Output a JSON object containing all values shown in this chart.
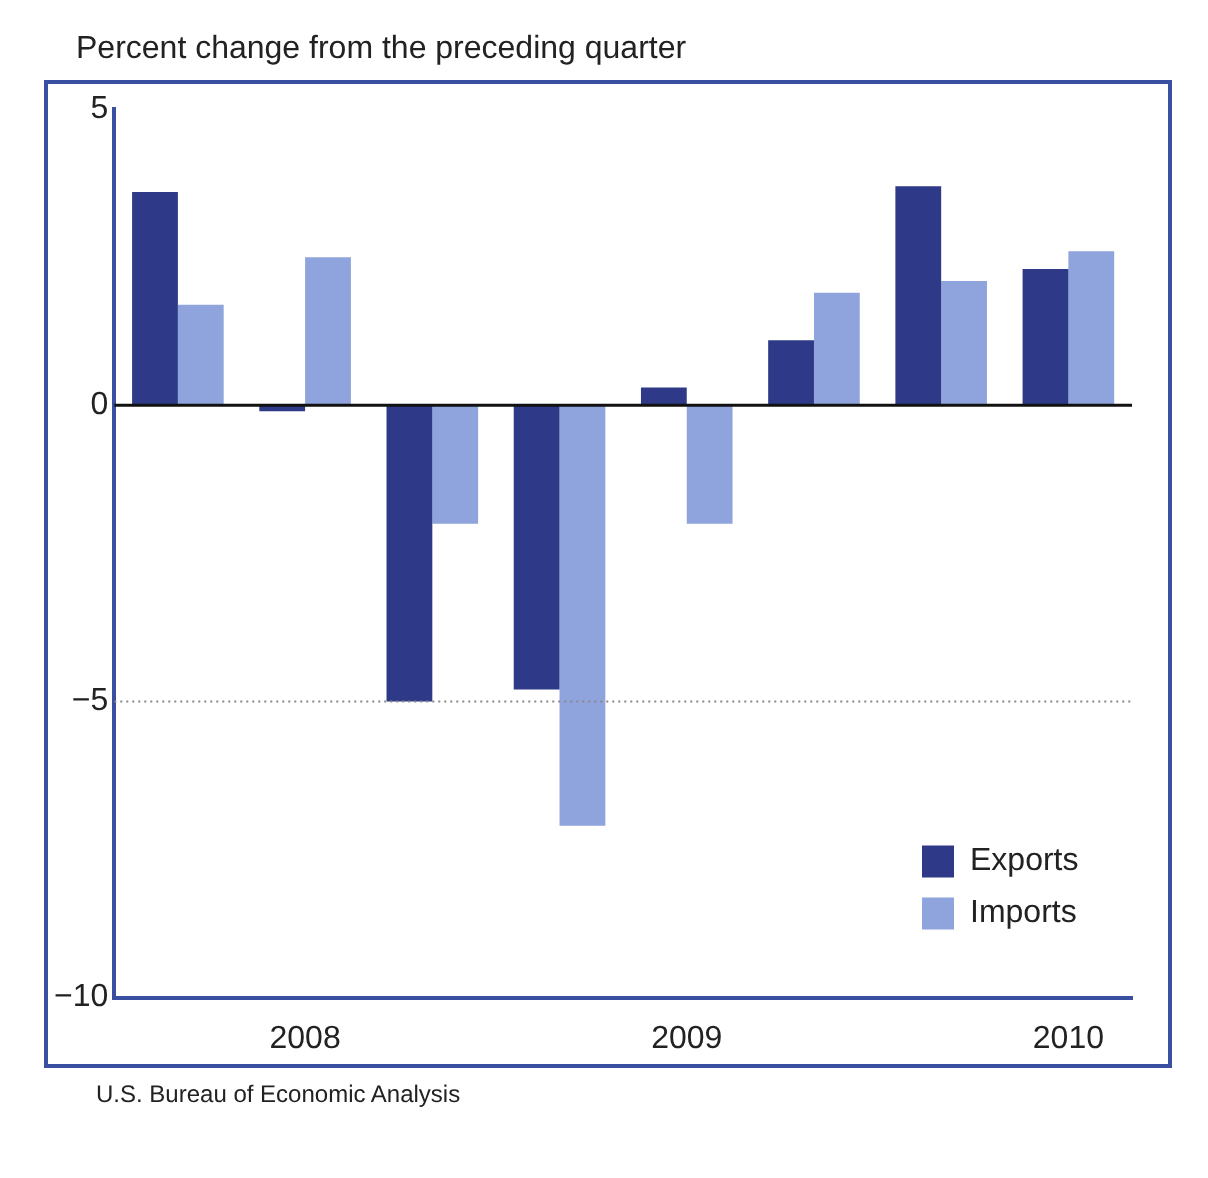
{
  "chart_data": {
    "type": "bar",
    "ylabel": "Percent change from the preceding quarter",
    "categories": [
      null,
      "2008",
      null,
      null,
      "2009",
      null,
      null,
      "2010"
    ],
    "series": [
      {
        "name": "Exports",
        "color": "#2e3a87",
        "values": [
          3.6,
          -0.1,
          -5.0,
          -4.8,
          0.3,
          1.1,
          3.7,
          2.3
        ]
      },
      {
        "name": "Imports",
        "color": "#8fa3dc",
        "values": [
          1.7,
          2.5,
          -2.0,
          -7.1,
          -2.0,
          1.9,
          2.1,
          2.6
        ]
      }
    ],
    "ylim": [
      -10,
      5
    ],
    "yticks": [
      {
        "value": -10,
        "label": "−10"
      },
      {
        "value": -5,
        "label": "−5"
      },
      0,
      5
    ],
    "ref_lines": [
      {
        "axis": "y",
        "value": 0,
        "color": "#111111",
        "line_style": "solid"
      },
      {
        "axis": "y",
        "value": -5,
        "color": "#888888",
        "line_style": "dotted"
      }
    ],
    "legend": "bottom right",
    "annotations": [
      "U.S. Bureau of Economic Analysis"
    ]
  }
}
